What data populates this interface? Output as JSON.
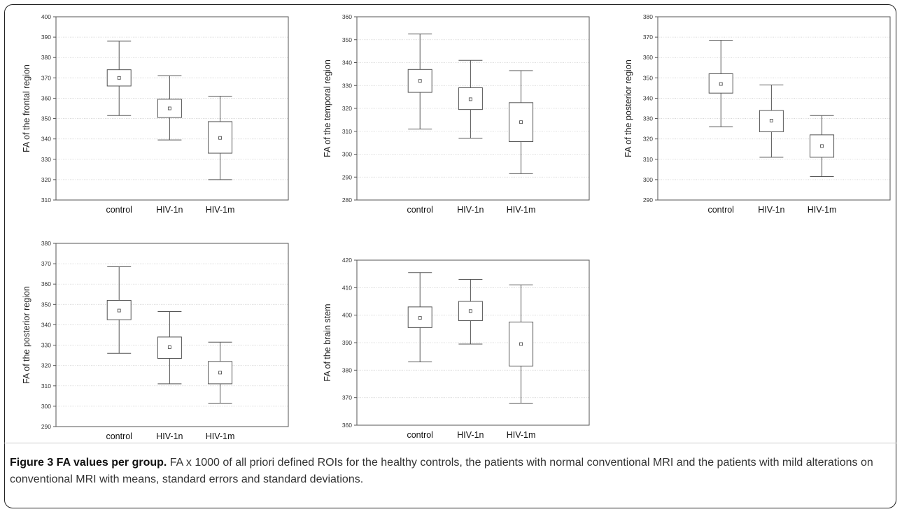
{
  "chart_data": [
    {
      "type": "box",
      "ylabel": "FA of the frontal region",
      "ylim": [
        310,
        400
      ],
      "yticks": [
        310,
        320,
        330,
        340,
        350,
        360,
        370,
        380,
        390,
        400
      ],
      "categories": [
        "control",
        "HIV-1n",
        "HIV-1m"
      ],
      "series": [
        {
          "category": "control",
          "whisker_low": 351.5,
          "box_low": 366,
          "mean": 370,
          "box_high": 374,
          "whisker_high": 388
        },
        {
          "category": "HIV-1n",
          "whisker_low": 339.5,
          "box_low": 350.5,
          "mean": 355,
          "box_high": 359.5,
          "whisker_high": 371
        },
        {
          "category": "HIV-1m",
          "whisker_low": 320,
          "box_low": 333,
          "mean": 340.5,
          "box_high": 348.5,
          "whisker_high": 361
        }
      ]
    },
    {
      "type": "box",
      "ylabel": "FA of the temporal region",
      "ylim": [
        280,
        360
      ],
      "yticks": [
        280,
        290,
        300,
        310,
        320,
        330,
        340,
        350,
        360
      ],
      "categories": [
        "control",
        "HIV-1n",
        "HIV-1m"
      ],
      "series": [
        {
          "category": "control",
          "whisker_low": 311,
          "box_low": 327,
          "mean": 332,
          "box_high": 337,
          "whisker_high": 352.5
        },
        {
          "category": "HIV-1n",
          "whisker_low": 307,
          "box_low": 319.5,
          "mean": 324,
          "box_high": 329,
          "whisker_high": 341
        },
        {
          "category": "HIV-1m",
          "whisker_low": 291.5,
          "box_low": 305.5,
          "mean": 314,
          "box_high": 322.5,
          "whisker_high": 336.5
        }
      ]
    },
    {
      "type": "box",
      "ylabel": "FA of the posterior region",
      "ylim": [
        290,
        380
      ],
      "yticks": [
        290,
        300,
        310,
        320,
        330,
        340,
        350,
        360,
        370,
        380
      ],
      "categories": [
        "control",
        "HIV-1n",
        "HIV-1m"
      ],
      "series": [
        {
          "category": "control",
          "whisker_low": 326,
          "box_low": 342.5,
          "mean": 347,
          "box_high": 352,
          "whisker_high": 368.5
        },
        {
          "category": "HIV-1n",
          "whisker_low": 311,
          "box_low": 323.5,
          "mean": 329,
          "box_high": 334,
          "whisker_high": 346.5
        },
        {
          "category": "HIV-1m",
          "whisker_low": 301.5,
          "box_low": 311,
          "mean": 316.5,
          "box_high": 322,
          "whisker_high": 331.5
        }
      ]
    },
    {
      "type": "box",
      "ylabel": "FA of the posterior region",
      "ylim": [
        290,
        380
      ],
      "yticks": [
        290,
        300,
        310,
        320,
        330,
        340,
        350,
        360,
        370,
        380
      ],
      "categories": [
        "control",
        "HIV-1n",
        "HIV-1m"
      ],
      "series": [
        {
          "category": "control",
          "whisker_low": 326,
          "box_low": 342.5,
          "mean": 347,
          "box_high": 352,
          "whisker_high": 368.5
        },
        {
          "category": "HIV-1n",
          "whisker_low": 311,
          "box_low": 323.5,
          "mean": 329,
          "box_high": 334,
          "whisker_high": 346.5
        },
        {
          "category": "HIV-1m",
          "whisker_low": 301.5,
          "box_low": 311,
          "mean": 316.5,
          "box_high": 322,
          "whisker_high": 331.5
        }
      ]
    },
    {
      "type": "box",
      "ylabel": "FA of the brain stem",
      "ylim": [
        360,
        420
      ],
      "yticks": [
        360,
        370,
        380,
        390,
        400,
        410,
        420
      ],
      "categories": [
        "control",
        "HIV-1n",
        "HIV-1m"
      ],
      "series": [
        {
          "category": "control",
          "whisker_low": 383,
          "box_low": 395.5,
          "mean": 399,
          "box_high": 403,
          "whisker_high": 415.5
        },
        {
          "category": "HIV-1n",
          "whisker_low": 389.5,
          "box_low": 398,
          "mean": 401.5,
          "box_high": 405,
          "whisker_high": 413
        },
        {
          "category": "HIV-1m",
          "whisker_low": 368,
          "box_low": 381.5,
          "mean": 389.5,
          "box_high": 397.5,
          "whisker_high": 411
        }
      ]
    }
  ],
  "caption": {
    "lead": "Figure 3 FA values per group.",
    "text": " FA x 1000 of all priori defined ROIs for the healthy controls, the patients with normal conventional MRI and the patients with mild alterations on conventional MRI with means, standard errors and standard deviations."
  }
}
